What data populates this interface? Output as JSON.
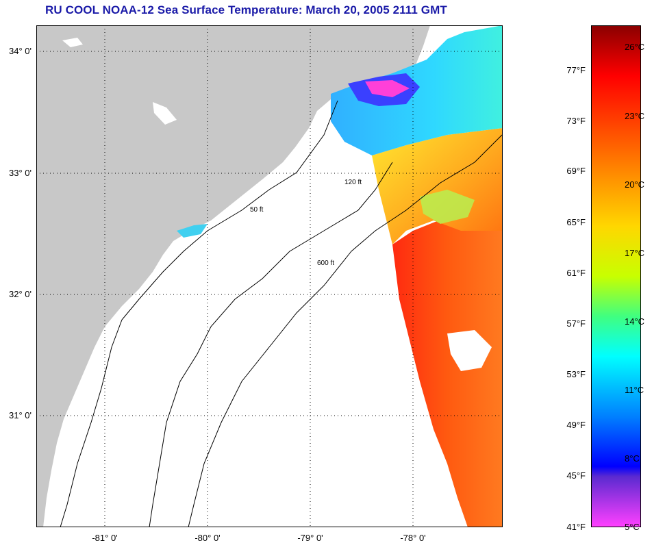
{
  "title": "RU COOL  NOAA-12  Sea Surface Temperature:  March 20, 2005 2111 GMT",
  "lat_labels": [
    "34° 0'",
    "33° 0'",
    "32° 0'",
    "31° 0'"
  ],
  "lon_labels": [
    "-81° 0'",
    "-80° 0'",
    "-79° 0'",
    "-78° 0'"
  ],
  "colorbar": {
    "fahrenheit": [
      "77°F",
      "73°F",
      "69°F",
      "65°F",
      "61°F",
      "57°F",
      "53°F",
      "49°F",
      "45°F",
      "41°F"
    ],
    "celsius": [
      "26°C",
      "23°C",
      "20°C",
      "17°C",
      "14°C",
      "11°C",
      "8°C",
      "5°C"
    ]
  },
  "contour_labels": [
    "50 ft",
    "120 ft",
    "600 ft"
  ],
  "colors": {
    "land": "#c8c8c8",
    "no_data": "#ffffff",
    "title": "#1a1aa8",
    "warm": "#ff3a10",
    "cold": "#2080ff"
  }
}
